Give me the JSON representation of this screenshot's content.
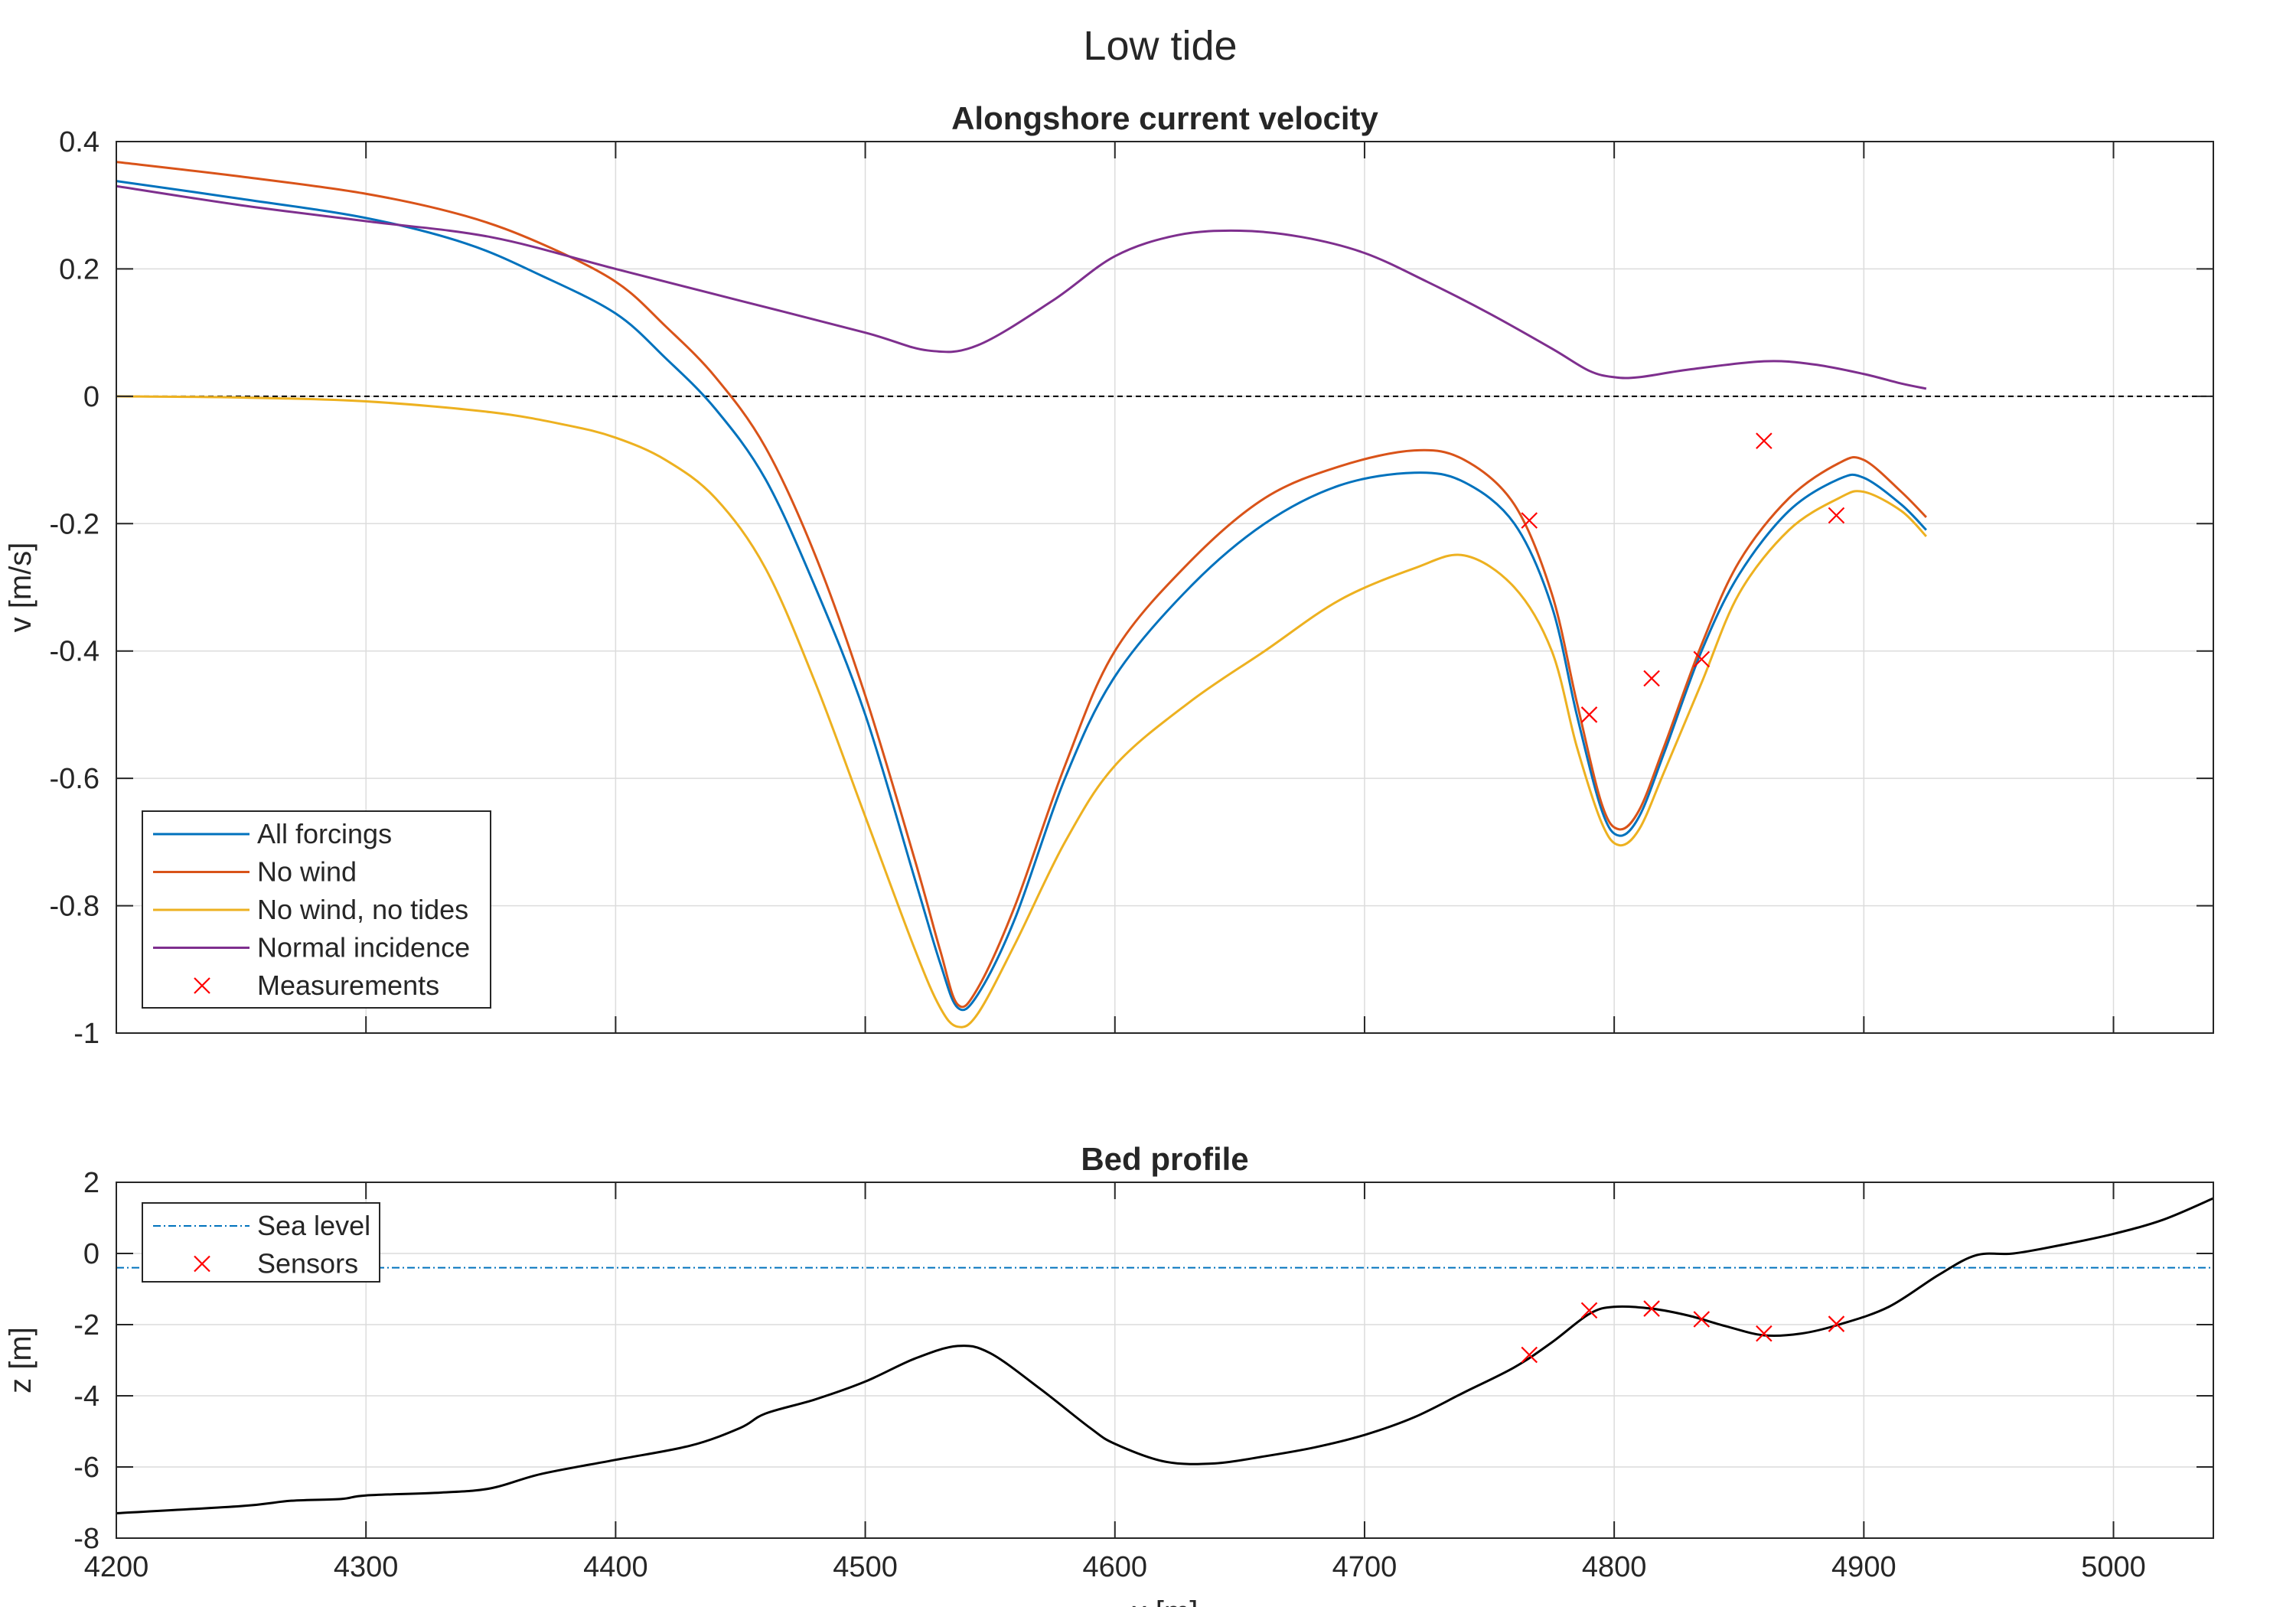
{
  "figure_title": "Low tide",
  "colors": {
    "all_forcings": "#0072BD",
    "no_wind": "#D95319",
    "no_wind_no_tides": "#EDB120",
    "normal_incidence": "#7E2F8E",
    "measurements": "#FF0000",
    "sea_level": "#0072BD",
    "bed": "#000000",
    "grid": "#DCDCDC",
    "axes": "#262626"
  },
  "chart_data": [
    {
      "type": "line",
      "title": "Alongshore current velocity",
      "xlabel": "",
      "ylabel": "v [m/s]",
      "xlim": [
        4200,
        5040
      ],
      "ylim": [
        -1,
        0.4
      ],
      "xticks": [
        4200,
        4300,
        4400,
        4500,
        4600,
        4700,
        4800,
        4900,
        5000
      ],
      "yticks": [
        -1,
        -0.8,
        -0.6,
        -0.4,
        -0.2,
        0,
        0.2,
        0.4
      ],
      "ytick_labels": [
        "-1",
        "-0.8",
        "-0.6",
        "-0.4",
        "-0.2",
        "0",
        "0.2",
        "0.4"
      ],
      "grid": true,
      "zero_line": true,
      "legend": {
        "location": "bottom-left",
        "entries": [
          "All forcings",
          "No wind",
          "No wind, no tides",
          "Normal incidence",
          "Measurements"
        ]
      },
      "series": [
        {
          "name": "All forcings",
          "x": [
            4200,
            4250,
            4300,
            4340,
            4370,
            4400,
            4420,
            4440,
            4460,
            4480,
            4500,
            4520,
            4530,
            4537,
            4545,
            4560,
            4580,
            4600,
            4630,
            4660,
            4690,
            4720,
            4740,
            4760,
            4775,
            4785,
            4795,
            4802,
            4810,
            4820,
            4835,
            4850,
            4870,
            4890,
            4900,
            4915,
            4925
          ],
          "y": [
            0.338,
            0.31,
            0.28,
            0.24,
            0.19,
            0.13,
            0.06,
            -0.02,
            -0.13,
            -0.3,
            -0.5,
            -0.76,
            -0.89,
            -0.96,
            -0.94,
            -0.82,
            -0.6,
            -0.44,
            -0.3,
            -0.2,
            -0.14,
            -0.12,
            -0.135,
            -0.2,
            -0.33,
            -0.5,
            -0.65,
            -0.69,
            -0.66,
            -0.56,
            -0.4,
            -0.28,
            -0.18,
            -0.13,
            -0.128,
            -0.17,
            -0.21
          ]
        },
        {
          "name": "No wind",
          "x": [
            4200,
            4250,
            4300,
            4340,
            4370,
            4400,
            4420,
            4440,
            4460,
            4480,
            4500,
            4520,
            4530,
            4537,
            4545,
            4560,
            4580,
            4600,
            4630,
            4660,
            4690,
            4720,
            4740,
            4760,
            4775,
            4785,
            4795,
            4802,
            4810,
            4820,
            4835,
            4850,
            4870,
            4890,
            4900,
            4915,
            4925
          ],
          "y": [
            0.368,
            0.345,
            0.318,
            0.283,
            0.24,
            0.18,
            0.11,
            0.03,
            -0.08,
            -0.25,
            -0.47,
            -0.73,
            -0.87,
            -0.955,
            -0.93,
            -0.8,
            -0.58,
            -0.4,
            -0.26,
            -0.16,
            -0.11,
            -0.085,
            -0.1,
            -0.17,
            -0.31,
            -0.48,
            -0.64,
            -0.68,
            -0.65,
            -0.55,
            -0.39,
            -0.26,
            -0.16,
            -0.105,
            -0.1,
            -0.15,
            -0.19
          ]
        },
        {
          "name": "No wind, no tides",
          "x": [
            4200,
            4250,
            4300,
            4350,
            4380,
            4400,
            4420,
            4440,
            4460,
            4480,
            4500,
            4520,
            4530,
            4537,
            4545,
            4560,
            4580,
            4600,
            4630,
            4660,
            4690,
            4720,
            4740,
            4760,
            4775,
            4785,
            4795,
            4802,
            4810,
            4820,
            4835,
            4850,
            4870,
            4890,
            4900,
            4915,
            4925
          ],
          "y": [
            0.0,
            -0.002,
            -0.008,
            -0.025,
            -0.045,
            -0.065,
            -0.1,
            -0.16,
            -0.27,
            -0.45,
            -0.66,
            -0.87,
            -0.96,
            -0.99,
            -0.97,
            -0.86,
            -0.7,
            -0.58,
            -0.48,
            -0.4,
            -0.32,
            -0.27,
            -0.25,
            -0.3,
            -0.4,
            -0.55,
            -0.67,
            -0.705,
            -0.68,
            -0.59,
            -0.45,
            -0.31,
            -0.21,
            -0.16,
            -0.15,
            -0.18,
            -0.22
          ]
        },
        {
          "name": "Normal incidence",
          "x": [
            4200,
            4250,
            4300,
            4350,
            4400,
            4450,
            4500,
            4525,
            4545,
            4575,
            4600,
            4625,
            4650,
            4675,
            4700,
            4725,
            4750,
            4775,
            4790,
            4800,
            4810,
            4830,
            4860,
            4880,
            4900,
            4915,
            4925
          ],
          "y": [
            0.33,
            0.3,
            0.275,
            0.25,
            0.2,
            0.15,
            0.1,
            0.072,
            0.08,
            0.15,
            0.22,
            0.253,
            0.26,
            0.25,
            0.225,
            0.18,
            0.13,
            0.075,
            0.04,
            0.03,
            0.03,
            0.042,
            0.055,
            0.05,
            0.035,
            0.02,
            0.012
          ]
        },
        {
          "name": "Measurements",
          "marker": "x",
          "x": [
            4766,
            4790,
            4815,
            4835,
            4860,
            4889
          ],
          "y": [
            -0.195,
            -0.5,
            -0.443,
            -0.413,
            -0.07,
            -0.187
          ]
        }
      ]
    },
    {
      "type": "line",
      "title": "Bed profile",
      "xlabel": "x [m]",
      "ylabel": "z [m]",
      "xlim": [
        4200,
        5040
      ],
      "ylim": [
        -8,
        2
      ],
      "xticks": [
        4200,
        4300,
        4400,
        4500,
        4600,
        4700,
        4800,
        4900,
        5000
      ],
      "yticks": [
        -8,
        -6,
        -4,
        -2,
        0,
        2
      ],
      "ytick_labels": [
        "-8",
        "-6",
        "-4",
        "-2",
        "0",
        "2"
      ],
      "grid": true,
      "legend": {
        "location": "top-left",
        "entries": [
          "Sea level",
          "Sensors"
        ]
      },
      "series": [
        {
          "name": "Sea level",
          "style": "dash-dot",
          "x": [
            4200,
            5040
          ],
          "y": [
            -0.4,
            -0.4
          ]
        },
        {
          "name": "Bed",
          "x": [
            4200,
            4250,
            4270,
            4290,
            4300,
            4330,
            4350,
            4370,
            4400,
            4430,
            4450,
            4460,
            4480,
            4500,
            4520,
            4537,
            4550,
            4570,
            4590,
            4600,
            4620,
            4640,
            4660,
            4680,
            4700,
            4720,
            4740,
            4760,
            4775,
            4790,
            4800,
            4815,
            4830,
            4845,
            4860,
            4875,
            4890,
            4910,
            4930,
            4945,
            4960,
            4980,
            5000,
            5020,
            5040
          ],
          "y": [
            -7.3,
            -7.1,
            -6.95,
            -6.9,
            -6.8,
            -6.72,
            -6.6,
            -6.2,
            -5.8,
            -5.4,
            -4.9,
            -4.5,
            -4.1,
            -3.6,
            -2.95,
            -2.6,
            -2.8,
            -3.8,
            -4.9,
            -5.35,
            -5.85,
            -5.9,
            -5.7,
            -5.45,
            -5.1,
            -4.6,
            -3.9,
            -3.2,
            -2.5,
            -1.7,
            -1.5,
            -1.55,
            -1.75,
            -2.05,
            -2.3,
            -2.25,
            -2.0,
            -1.5,
            -0.6,
            -0.05,
            0.0,
            0.25,
            0.55,
            0.95,
            1.55
          ]
        },
        {
          "name": "Sensors",
          "marker": "x",
          "x": [
            4766,
            4790,
            4815,
            4835,
            4860,
            4889
          ],
          "y": [
            -2.85,
            -1.6,
            -1.55,
            -1.85,
            -2.25,
            -1.98
          ]
        }
      ]
    }
  ]
}
